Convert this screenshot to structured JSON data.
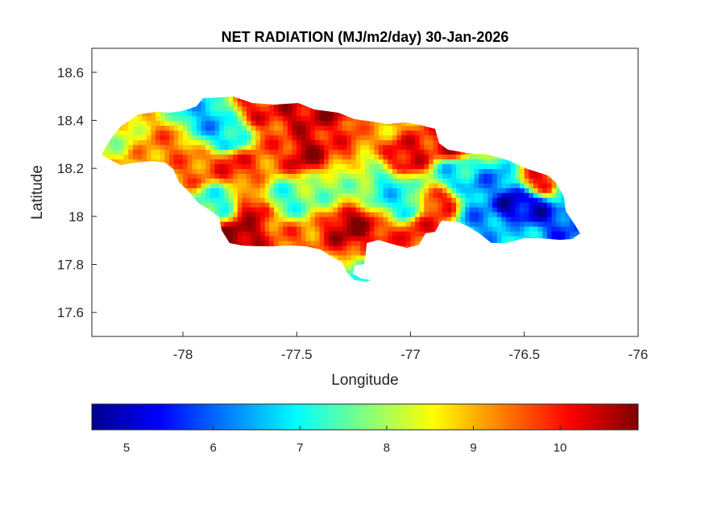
{
  "chart_data": {
    "type": "heatmap",
    "title": "NET RADIATION (MJ/m2/day) 30-Jan-2026",
    "xlabel": "Longitude",
    "ylabel": "Latitude",
    "xlim": [
      -78.4,
      -76
    ],
    "ylim": [
      17.5,
      18.7
    ],
    "x_ticks": [
      -78,
      -77.5,
      -77,
      -76.5,
      -76
    ],
    "y_ticks": [
      17.6,
      17.8,
      18,
      18.2,
      18.4,
      18.6
    ],
    "colorbar": {
      "colormap": "jet",
      "range": [
        4.6,
        10.9
      ],
      "ticks": [
        5,
        6,
        7,
        8,
        9,
        10
      ],
      "orientation": "horizontal",
      "placement": "bottom"
    },
    "region": "Jamaica",
    "value_hotspots": [
      {
        "lon": -77.75,
        "lat": 17.92,
        "value": 10.8
      },
      {
        "lon": -77.25,
        "lat": 17.96,
        "value": 10.7
      },
      {
        "lon": -77.45,
        "lat": 18.27,
        "value": 10.6
      },
      {
        "lon": -77.5,
        "lat": 18.45,
        "value": 10.4
      },
      {
        "lon": -77.35,
        "lat": 18.46,
        "value": 10.5
      },
      {
        "lon": -77.68,
        "lat": 18.02,
        "value": 10.2
      },
      {
        "lon": -77.78,
        "lat": 18.22,
        "value": 10.0
      },
      {
        "lon": -77.02,
        "lat": 18.25,
        "value": 10.3
      },
      {
        "lon": -76.82,
        "lat": 18.3,
        "value": 10.2
      },
      {
        "lon": -77.3,
        "lat": 18.3,
        "value": 9.8
      },
      {
        "lon": -77.6,
        "lat": 18.3,
        "value": 9.6
      },
      {
        "lon": -77.65,
        "lat": 18.45,
        "value": 10.0
      },
      {
        "lon": -77.15,
        "lat": 17.9,
        "value": 10.1
      },
      {
        "lon": -76.95,
        "lat": 17.95,
        "value": 9.9
      },
      {
        "lon": -76.88,
        "lat": 18.05,
        "value": 10.0
      },
      {
        "lon": -76.42,
        "lat": 18.15,
        "value": 10.0
      },
      {
        "lon": -78.05,
        "lat": 18.3,
        "value": 9.4
      },
      {
        "lon": -78.2,
        "lat": 18.22,
        "value": 9.2
      },
      {
        "lon": -77.95,
        "lat": 18.2,
        "value": 9.5
      },
      {
        "lon": -77.55,
        "lat": 17.9,
        "value": 9.5
      },
      {
        "lon": -77.12,
        "lat": 18.4,
        "value": 9.0
      },
      {
        "lon": -78.3,
        "lat": 18.3,
        "value": 8.2
      },
      {
        "lon": -77.9,
        "lat": 18.4,
        "value": 6.5
      },
      {
        "lon": -77.8,
        "lat": 18.33,
        "value": 6.8
      },
      {
        "lon": -77.85,
        "lat": 18.06,
        "value": 7.2
      },
      {
        "lon": -77.55,
        "lat": 18.07,
        "value": 7.3
      },
      {
        "lon": -77.1,
        "lat": 18.12,
        "value": 6.9
      },
      {
        "lon": -77.02,
        "lat": 18.05,
        "value": 7.0
      },
      {
        "lon": -77.35,
        "lat": 18.12,
        "value": 7.8
      },
      {
        "lon": -77.2,
        "lat": 18.2,
        "value": 8.2
      },
      {
        "lon": -77.18,
        "lat": 17.75,
        "value": 7.0
      },
      {
        "lon": -76.65,
        "lat": 18.12,
        "value": 6.2
      },
      {
        "lon": -76.55,
        "lat": 18.06,
        "value": 5.0
      },
      {
        "lon": -76.45,
        "lat": 18.03,
        "value": 5.2
      },
      {
        "lon": -76.7,
        "lat": 18.0,
        "value": 6.3
      },
      {
        "lon": -76.52,
        "lat": 17.92,
        "value": 6.8
      },
      {
        "lon": -76.35,
        "lat": 17.98,
        "value": 5.8
      },
      {
        "lon": -76.8,
        "lat": 18.18,
        "value": 6.8
      },
      {
        "lon": -76.3,
        "lat": 18.1,
        "value": 7.2
      }
    ]
  }
}
